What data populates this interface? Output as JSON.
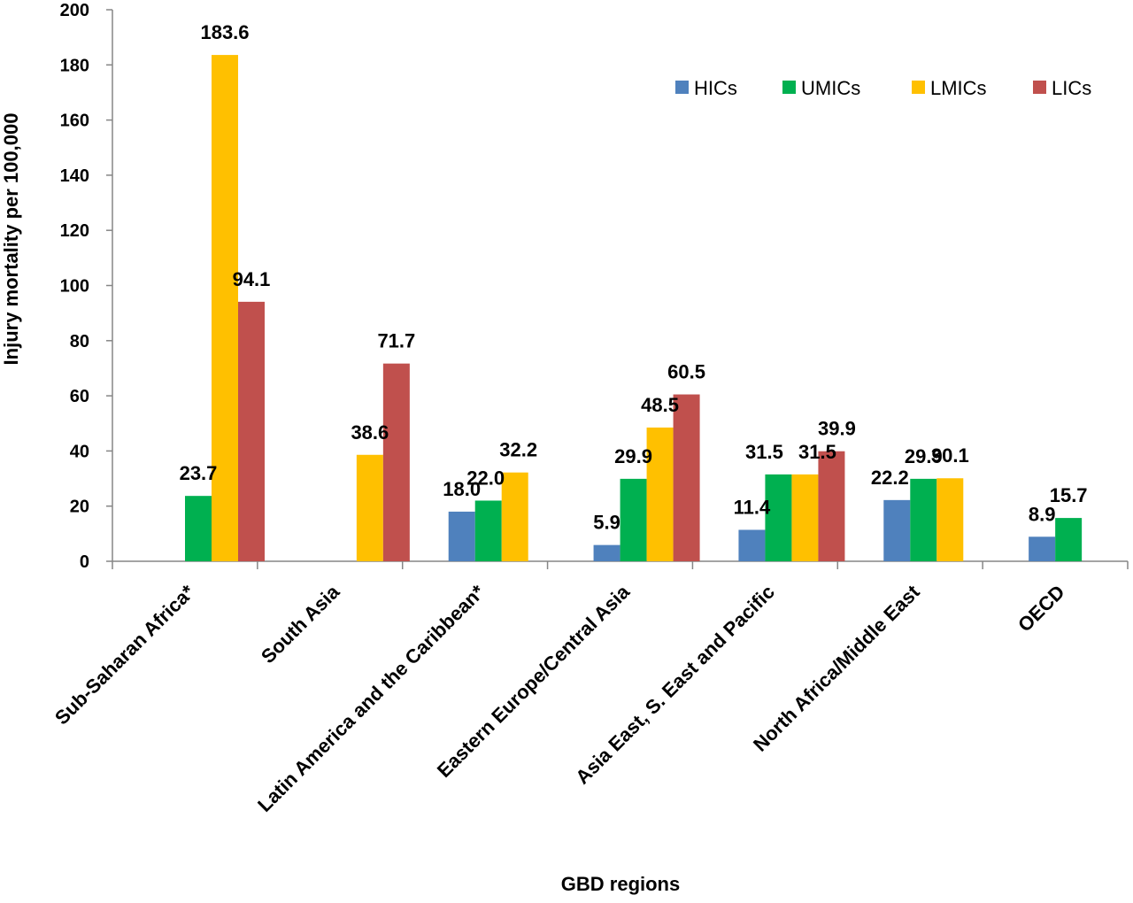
{
  "chart_data": {
    "type": "bar",
    "title": "",
    "xlabel": "GBD regions",
    "ylabel": "Injury mortality per 100,000",
    "ylim": [
      0,
      200
    ],
    "yticks": [
      0,
      20,
      40,
      60,
      80,
      100,
      120,
      140,
      160,
      180,
      200
    ],
    "grid": false,
    "legend_position": "top-right",
    "categories": [
      "Sub-Saharan Africa*",
      "South Asia",
      "Latin America and the Caribbean*",
      "Eastern Europe/Central Asia",
      "Asia East, S. East and Pacific",
      "North Africa/Middle East",
      "OECD"
    ],
    "series": [
      {
        "name": "HICs",
        "color": "#4F81BD",
        "values": [
          null,
          null,
          18.0,
          5.9,
          11.4,
          22.2,
          8.9
        ]
      },
      {
        "name": "UMICs",
        "color": "#00B050",
        "values": [
          23.7,
          null,
          22.0,
          29.9,
          31.5,
          29.9,
          15.7
        ]
      },
      {
        "name": "LMICs",
        "color": "#FFC000",
        "values": [
          183.6,
          38.6,
          32.2,
          48.5,
          31.5,
          30.1,
          null
        ]
      },
      {
        "name": "LICs",
        "color": "#C0504D",
        "values": [
          94.1,
          71.7,
          null,
          60.5,
          39.9,
          null,
          null
        ]
      }
    ]
  }
}
